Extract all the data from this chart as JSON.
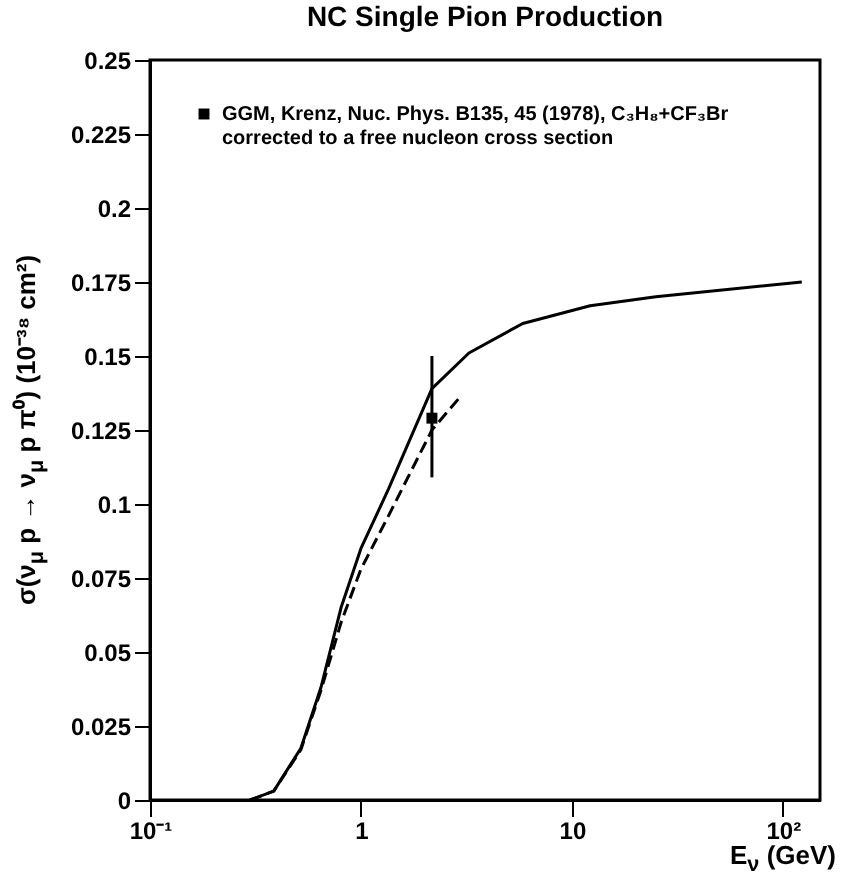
{
  "chart_data": {
    "type": "line",
    "title": "NC Single Pion Production",
    "xlabel": "E$_{ν}$ (GeV)",
    "ylabel": "σ(ν$_{μ}$ p → ν$_{μ}$ p π⁰) (10⁻³⁸ cm²)",
    "log": "x",
    "xlim": [
      0.1,
      150
    ],
    "xticks": [
      {
        "value": 0.1,
        "label": "10⁻¹"
      },
      1,
      10,
      {
        "value": 100,
        "label": "10²"
      }
    ],
    "ylim": [
      0,
      0.25
    ],
    "yticks": [
      0,
      0.025,
      0.05,
      0.075,
      0.1,
      0.125,
      0.15,
      0.175,
      0.2,
      0.225,
      0.25
    ],
    "legend": "top left",
    "series": [
      {
        "type": "line",
        "color": "#000000",
        "line_style": "solid",
        "x": [
          0.298,
          0.386,
          0.519,
          0.646,
          0.805,
          1.0,
          1.35,
          2.17,
          3.25,
          5.85,
          12.2,
          25,
          123
        ],
        "values": [
          0,
          0.003,
          0.0175,
          0.038,
          0.065,
          0.085,
          0.105,
          0.139,
          0.151,
          0.161,
          0.167,
          0.17,
          0.175
        ]
      },
      {
        "type": "line",
        "color": "#000000",
        "line_style": "dashed",
        "x": [
          0.298,
          0.386,
          0.519,
          0.646,
          0.805,
          1.0,
          1.35,
          2.17,
          3.02
        ],
        "values": [
          0,
          0.003,
          0.017,
          0.037,
          0.06,
          0.078,
          0.096,
          0.125,
          0.137
        ]
      },
      {
        "type": "scatter",
        "name": "GGM, Krenz, Nuc. Phys. B135, 45 (1978), C₃H₈+CF₃Br\ncorrected to a free nucleon cross section",
        "color": "#000000",
        "marker": "square",
        "x": [
          2.17
        ],
        "values": [
          0.129
        ],
        "errors": [
          [
            0.109,
            0.15
          ]
        ]
      }
    ]
  }
}
